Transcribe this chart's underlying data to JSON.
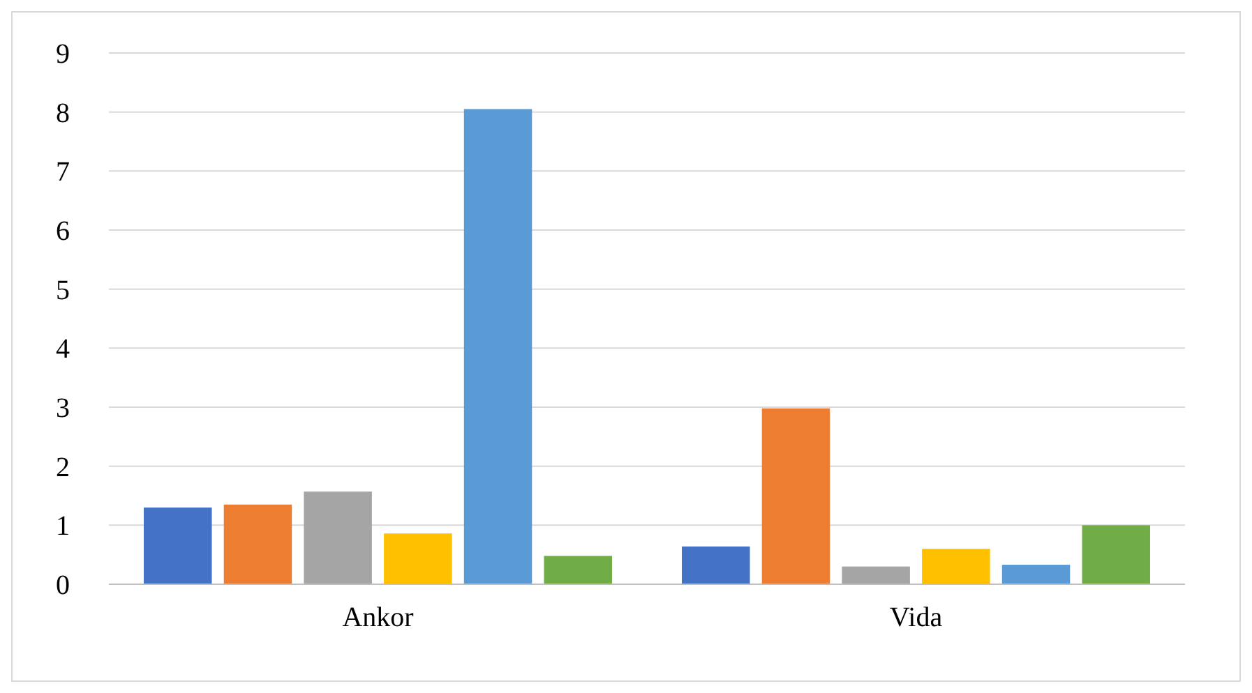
{
  "chart_data": {
    "type": "bar",
    "categories": [
      "Ankor",
      "Vida"
    ],
    "series": [
      {
        "color": "#4472c4",
        "values": [
          1.3,
          0.64
        ]
      },
      {
        "color": "#ed7d31",
        "values": [
          1.35,
          2.98
        ]
      },
      {
        "color": "#a5a5a5",
        "values": [
          1.57,
          0.3
        ]
      },
      {
        "color": "#ffc000",
        "values": [
          0.86,
          0.6
        ]
      },
      {
        "color": "#5b9bd5",
        "values": [
          8.05,
          0.33
        ]
      },
      {
        "color": "#70ad47",
        "values": [
          0.48,
          1.0
        ]
      }
    ],
    "ylim": [
      0,
      9
    ],
    "yticks": [
      0,
      1,
      2,
      3,
      4,
      5,
      6,
      7,
      8,
      9
    ],
    "grid": "y"
  }
}
